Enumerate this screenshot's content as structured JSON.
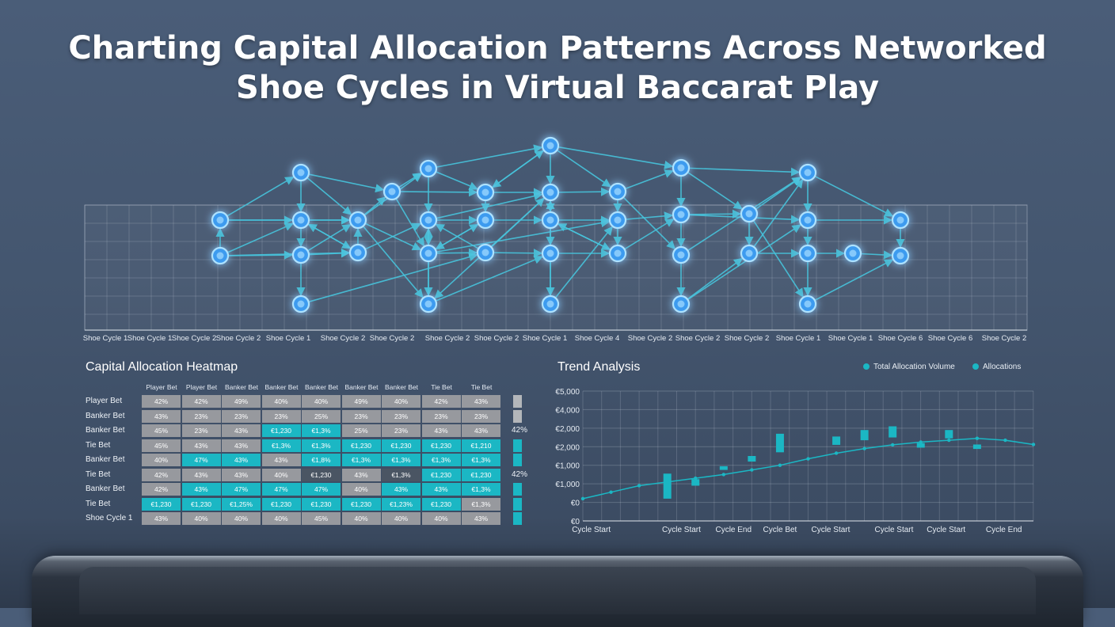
{
  "title": {
    "line1": "Charting Capital Allocation Patterns Across Networked",
    "line2": "Shoe Cycles in Virtual Baccarat Play"
  },
  "colors": {
    "accent": "#1bb7c4",
    "node": "#3d9bef",
    "node_glow": "#5ab8ff",
    "edge": "#47c4dc",
    "cell_gray": "#97999e",
    "cell_dark": "#4a5563",
    "background": "#48596f"
  },
  "network": {
    "x_labels": [
      "Shoe Cycle 1",
      "Shoe Cycle 1",
      "Shoe Cycle 2",
      "Shoe Cycle 2",
      "Shoe Cycle 1",
      "Shoe Cycle 2",
      "Shoe Cycle 2",
      "Shoe Cycle 2",
      "Shoe Cycle 2",
      "Shoe Cycle 1",
      "Shoe Cycle 4",
      "Shoe Cycle 2",
      "Shoe Cycle 2",
      "Shoe Cycle 2",
      "Shoe Cycle 1",
      "Shoe Cycle 1",
      "Shoe Cycle 6",
      "Shoe Cycle 6",
      "Shoe Cycle 2"
    ]
  },
  "heatmap": {
    "title": "Capital Allocation Heatmap",
    "columns": [
      "Player Bet",
      "Player Bet",
      "Banker Bet",
      "Banker Bet",
      "Banker Bet",
      "Banker Bet",
      "Banker Bet",
      "Tie Bet",
      "Tie Bet"
    ],
    "rows": [
      {
        "label": "Player Bet",
        "cells": [
          "42%",
          "42%",
          "49%",
          "40%",
          "40%",
          "49%",
          "40%",
          "42%",
          "43%"
        ],
        "tones": "ggggggggg",
        "side": "g",
        "side_text": ""
      },
      {
        "label": "Banker Bet",
        "cells": [
          "43%",
          "23%",
          "23%",
          "23%",
          "25%",
          "23%",
          "23%",
          "23%",
          "23%"
        ],
        "tones": "ggggggggg",
        "side": "g",
        "side_text": ""
      },
      {
        "label": "Banker Bet",
        "cells": [
          "45%",
          "23%",
          "43%",
          "€1,230",
          "€1,3%",
          "25%",
          "23%",
          "43%",
          "43%"
        ],
        "tones": "gggttgggg",
        "side": "",
        "side_text": "42%"
      },
      {
        "label": "Tie Bet",
        "cells": [
          "45%",
          "43%",
          "43%",
          "€1,3%",
          "€1,3%",
          "€1,230",
          "€1,230",
          "€1,230",
          "€1,210"
        ],
        "tones": "gggttttt t",
        "side": "t",
        "side_text": ""
      },
      {
        "label": "Banker Bet",
        "cells": [
          "40%",
          "47%",
          "43%",
          "43%",
          "€1,8%",
          "€1,3%",
          "€1,3%",
          "€1,3%",
          "€1,3%"
        ],
        "tones": "gttgttttt",
        "side": "t",
        "side_text": ""
      },
      {
        "label": "Tie Bet",
        "cells": [
          "42%",
          "43%",
          "43%",
          "40%",
          "€1,230",
          "43%",
          "€1,3%",
          "€1,230",
          "€1,230"
        ],
        "tones": "ggggdgdtt",
        "side": "",
        "side_text": "42%"
      },
      {
        "label": "Banker Bet",
        "cells": [
          "42%",
          "43%",
          "47%",
          "47%",
          "47%",
          "40%",
          "43%",
          "43%",
          "€1,3%"
        ],
        "tones": "gttttgttt",
        "side": "t",
        "side_text": ""
      },
      {
        "label": "Tie Bet",
        "cells": [
          "€1,230",
          "€1,230",
          "€1,25%",
          "€1,230",
          "€1,230",
          "€1,230",
          "€1,23%",
          "€1,230",
          "€1,3%"
        ],
        "tones": "ttttttttg",
        "side": "t",
        "side_text": ""
      },
      {
        "label": "Shoe Cycle 1",
        "cells": [
          "43%",
          "40%",
          "40%",
          "40%",
          "45%",
          "40%",
          "40%",
          "40%",
          "43%"
        ],
        "tones": "ggggggggg",
        "side": "t",
        "side_text": ""
      }
    ]
  },
  "trend": {
    "title": "Trend Analysis",
    "legend": [
      "Total Allocation Volume",
      "Allocations"
    ]
  },
  "chart_data": {
    "type": "line",
    "title": "Trend Analysis",
    "xlabel": "",
    "ylabel": "",
    "y_tick_labels": [
      "€0",
      "€0",
      "€1,000",
      "€1,000",
      "€2,000",
      "€2,000",
      "€4,000",
      "€5,000"
    ],
    "x_tick_labels": [
      "Cycle Start",
      "Cycle Start",
      "Cycle End",
      "Cycle Bet",
      "Cycle Start",
      "Cycle Start",
      "Cycle Start",
      "Cycle End"
    ],
    "ylim": [
      0,
      7
    ],
    "grid": true,
    "legend_position": "top-right",
    "series": [
      {
        "name": "Total Allocation Volume",
        "x": [
          0,
          1,
          2,
          3,
          4,
          5,
          6,
          7,
          8,
          9,
          10,
          11,
          12,
          13,
          14,
          15,
          16
        ],
        "values": [
          1.2,
          1.55,
          1.9,
          2.1,
          2.3,
          2.5,
          2.75,
          3.0,
          3.35,
          3.65,
          3.9,
          4.1,
          4.25,
          4.35,
          4.45,
          4.35,
          4.12
        ]
      },
      {
        "name": "Allocations",
        "type": "candlestick",
        "x": [
          3,
          4,
          5,
          6,
          7.0,
          8,
          9,
          10,
          11,
          12,
          13,
          14,
          15
        ],
        "low": [
          1.2,
          1.9,
          2.75,
          3.2,
          3.7,
          4.0,
          4.1,
          4.35,
          4.5,
          3.95,
          4.45,
          3.88,
          0.0
        ],
        "high": [
          2.55,
          2.25,
          2.95,
          3.5,
          4.7,
          4.0,
          4.55,
          4.9,
          5.1,
          4.2,
          4.9,
          4.12,
          0.0
        ]
      }
    ]
  }
}
